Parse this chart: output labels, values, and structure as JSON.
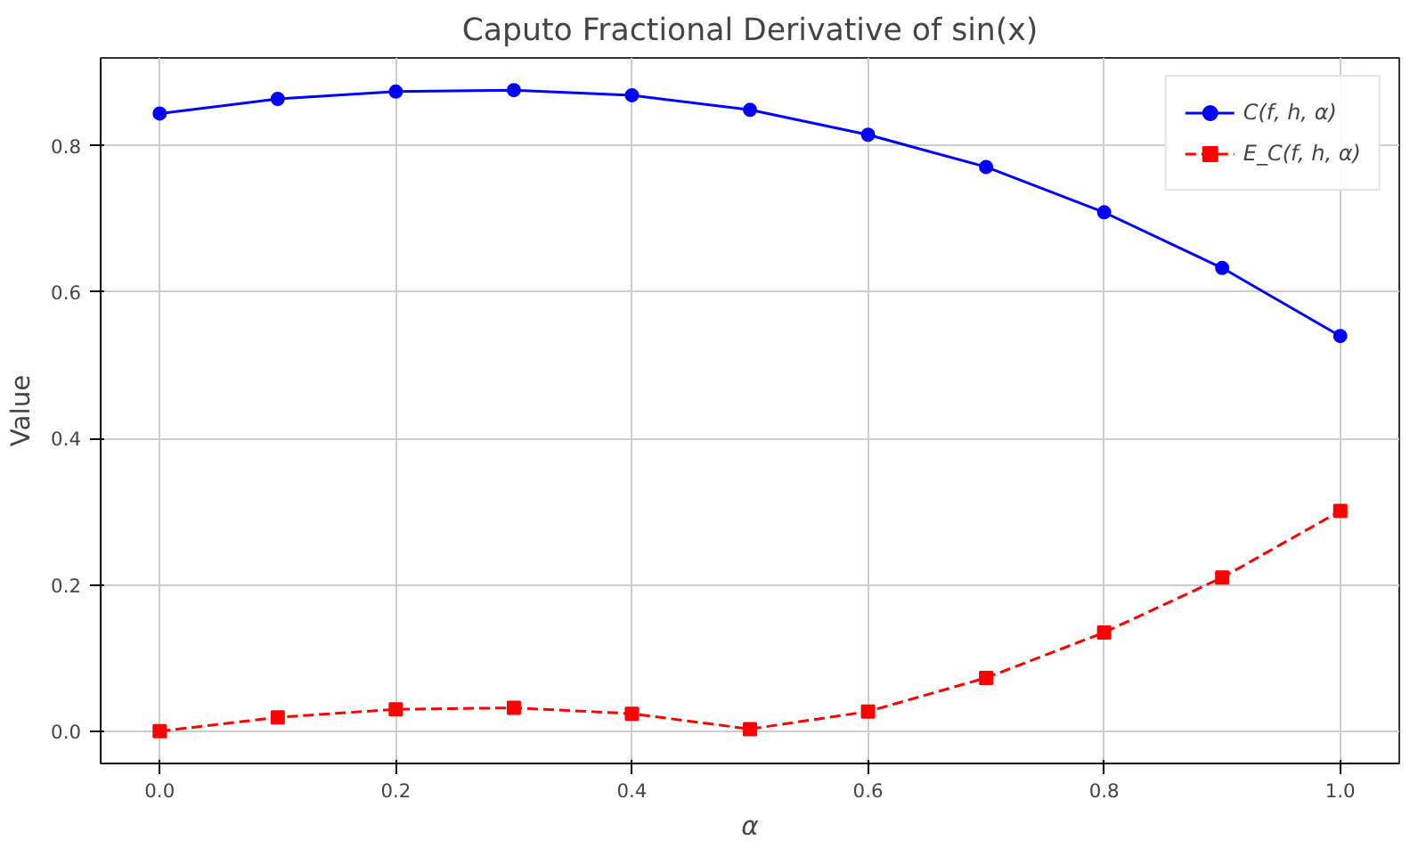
{
  "chart_data": {
    "type": "line",
    "title": "Caputo Fractional Derivative of sin(x)",
    "xlabel": "α",
    "ylabel": "Value",
    "x": [
      0.0,
      0.1,
      0.2,
      0.3,
      0.4,
      0.5,
      0.6,
      0.7,
      0.8,
      0.9,
      1.0
    ],
    "series": [
      {
        "name": "C(f, h, α)",
        "color": "#0000ff",
        "marker": "circle",
        "line_style": "solid",
        "values": [
          0.844,
          0.864,
          0.874,
          0.876,
          0.869,
          0.849,
          0.815,
          0.771,
          0.709,
          0.633,
          0.54
        ]
      },
      {
        "name": "E_C(f, h, α)",
        "color": "#ff0000",
        "marker": "square",
        "line_style": "dashed",
        "values": [
          0.0,
          0.019,
          0.03,
          0.032,
          0.024,
          0.003,
          0.027,
          0.073,
          0.135,
          0.21,
          0.301
        ]
      }
    ],
    "xlim": [
      -0.05,
      1.05
    ],
    "ylim": [
      -0.044,
      0.92
    ],
    "xticks": [
      {
        "value": 0,
        "label": "0.0"
      },
      0.2,
      0.4,
      0.6,
      0.8,
      {
        "value": 1,
        "label": "1.0"
      }
    ],
    "yticks": [
      {
        "value": 0,
        "label": "0.0"
      },
      0.2,
      0.4,
      0.6,
      0.8
    ],
    "grid": true,
    "legend": "top right"
  }
}
